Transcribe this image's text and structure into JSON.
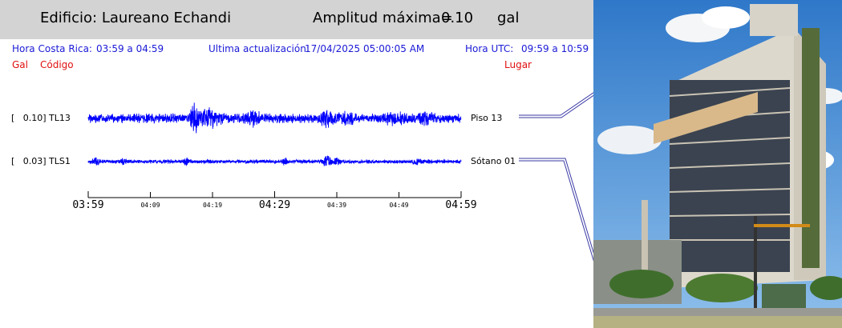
{
  "header": {
    "building": "Edificio: Laureano Echandi",
    "amplitude_label": "Amplitud máxima=",
    "amplitude_value": "0.10",
    "amplitude_unit": "gal"
  },
  "info": {
    "local_time_label": "Hora Costa Rica:",
    "local_time_range": "03:59 a 04:59",
    "last_update_label": "Ultima actualización:",
    "last_update_value": "17/04/2025 05:00:05 AM",
    "utc_label": "Hora UTC:",
    "utc_range": "09:59 a 10:59"
  },
  "columns": {
    "gal": "Gal",
    "code": "Código",
    "place": "Lugar"
  },
  "stations": [
    {
      "label": "[   0.10] TL13",
      "place": "Piso 13"
    },
    {
      "label": "[   0.03] TLS1",
      "place": "Sótano 01"
    }
  ],
  "time_axis": {
    "major": [
      "03:59",
      "04:29",
      "04:59"
    ],
    "minor": [
      "04:09",
      "04:19",
      "04:39",
      "04:49"
    ]
  },
  "colors": {
    "trace": "#0000ff",
    "info_text": "#1a1ad6",
    "header_text_red": "#e01010",
    "header_bg": "#d3d3d3"
  }
}
